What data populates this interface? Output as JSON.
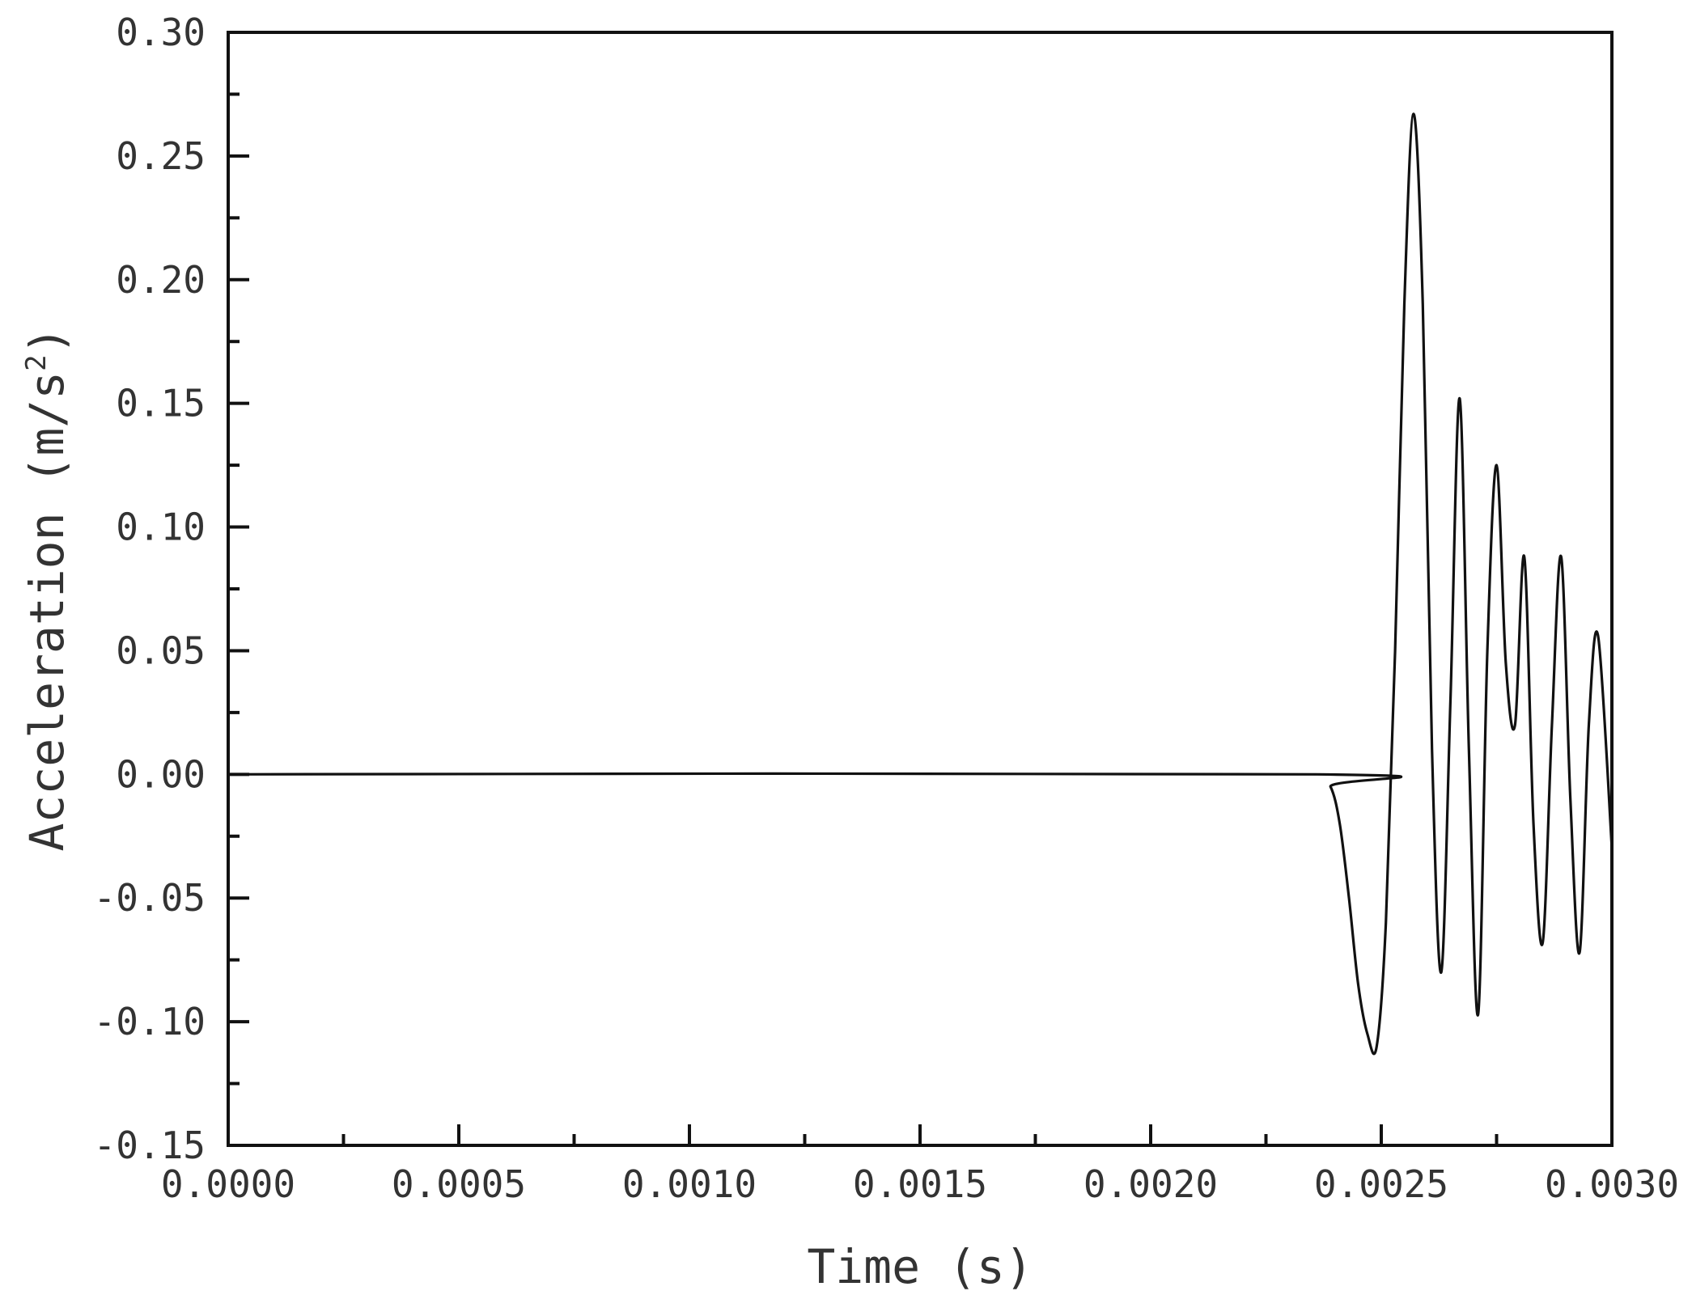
{
  "chart_data": {
    "type": "line",
    "xlabel": "Time (s)",
    "ylabel_main": "Acceleration (m/s",
    "ylabel_sup": "2",
    "ylabel_close": ")",
    "xlim": [
      0,
      0.003
    ],
    "ylim": [
      -0.15,
      0.3
    ],
    "x_ticks": [
      0,
      0.0005,
      0.001,
      0.0015,
      0.002,
      0.0025,
      0.003
    ],
    "x_tick_labels": [
      "0.0000",
      "0.0005",
      "0.0010",
      "0.0015",
      "0.0020",
      "0.0025",
      "0.0030"
    ],
    "x_minor_ticks": [
      0.00025,
      0.00075,
      0.00125,
      0.00175,
      0.00225,
      0.00275
    ],
    "y_ticks": [
      0.3,
      0.25,
      0.2,
      0.15,
      0.1,
      0.05,
      0,
      -0.05,
      -0.1,
      -0.15
    ],
    "y_tick_labels": [
      "0.30",
      "0.25",
      "0.20",
      "0.15",
      "0.10",
      "0.05",
      "0.00",
      "-0.05",
      "-0.10",
      "-0.15"
    ],
    "y_minor_ticks": [
      0.275,
      0.225,
      0.175,
      0.125,
      0.075,
      0.025,
      -0.025,
      -0.075,
      -0.125
    ],
    "grid": false,
    "legend": "none",
    "line_color": "#111111",
    "series": [
      {
        "x": [
          0,
          0.00236,
          0.00239,
          0.00241,
          0.00243,
          0.00245,
          0.00247,
          0.00249,
          0.00251,
          0.00253,
          0.00255,
          0.00257,
          0.00259,
          0.00261,
          0.00263,
          0.00265,
          0.00267,
          0.00269,
          0.00271,
          0.00273,
          0.00275,
          0.00277,
          0.00279,
          0.00281,
          0.00283,
          0.00285,
          0.00287,
          0.00289,
          0.00291,
          0.00293,
          0.00295,
          0.00297,
          0.003
        ],
        "y": [
          0,
          0,
          -0.005,
          -0.02,
          -0.05,
          -0.085,
          -0.105,
          -0.11,
          -0.06,
          0.05,
          0.19,
          0.267,
          0.19,
          0.01,
          -0.08,
          0.03,
          0.152,
          0.01,
          -0.097,
          0.05,
          0.125,
          0.045,
          0.02,
          0.088,
          -0.02,
          -0.068,
          0.02,
          0.088,
          -0.01,
          -0.072,
          0.02,
          0.056,
          -0.03
        ]
      }
    ]
  }
}
